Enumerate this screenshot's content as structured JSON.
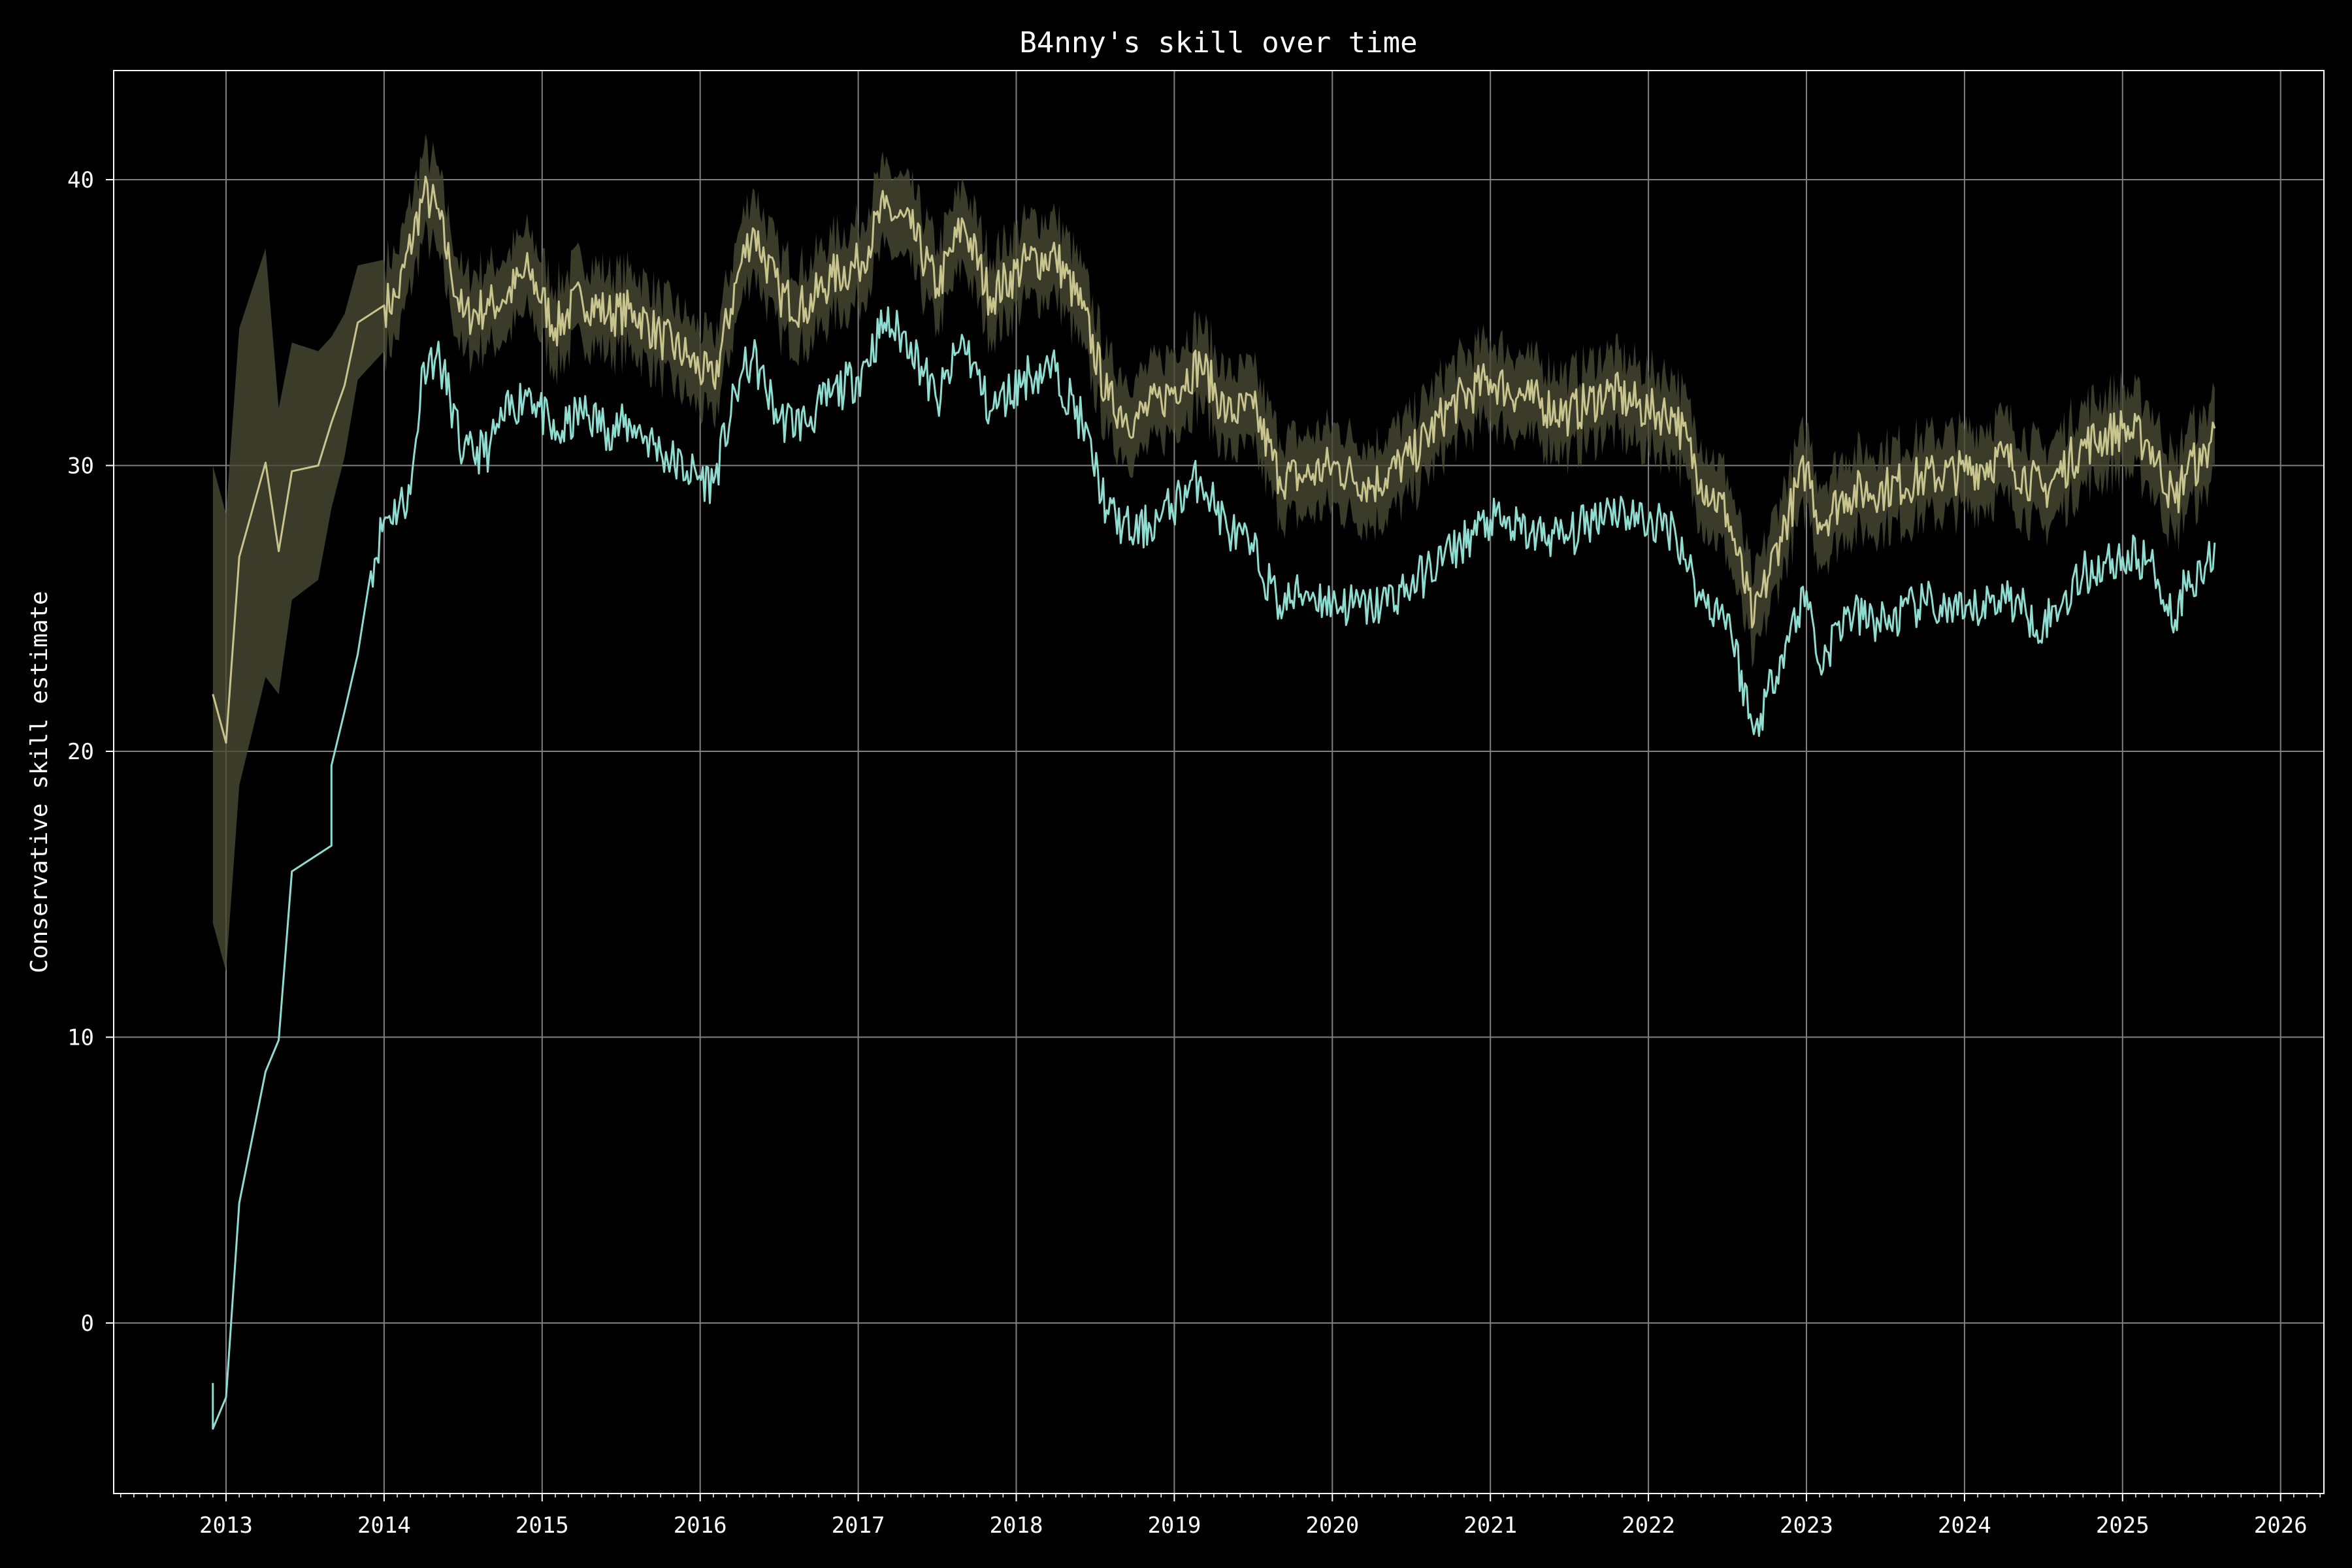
{
  "chart_data": {
    "type": "line",
    "title": "B4nny's skill over time",
    "xlabel": "",
    "ylabel": "Conservative skill estimate",
    "x_ticks": [
      "2013",
      "2014",
      "2015",
      "2016",
      "2017",
      "2018",
      "2019",
      "2020",
      "2021",
      "2022",
      "2023",
      "2024",
      "2025",
      "2026"
    ],
    "y_ticks": [
      "0",
      "10",
      "20",
      "30",
      "40"
    ],
    "xlim": [
      "2012-04",
      "2026-03"
    ],
    "ylim": [
      -6,
      44
    ],
    "grid": true,
    "colors": {
      "background": "#000000",
      "grid": "#808080",
      "axes": "#ffffff",
      "mean_line": "#c8c48e",
      "mean_band": "#4a4a35",
      "conservative_line": "#8fdcd0"
    },
    "series": [
      {
        "role": "mean_with_band",
        "points": [
          [
            "2012-12",
            22.0
          ],
          [
            "2013-01",
            20.3
          ],
          [
            "2013-02",
            26.8
          ],
          [
            "2013-04",
            30.1
          ],
          [
            "2013-05",
            27.0
          ],
          [
            "2013-06",
            29.8
          ],
          [
            "2013-08",
            30.0
          ],
          [
            "2013-09",
            31.5
          ],
          [
            "2013-10",
            32.8
          ],
          [
            "2013-11",
            35.0
          ],
          [
            "2014-01",
            35.6
          ],
          [
            "2014-02",
            35.9
          ],
          [
            "2014-04",
            39.5
          ],
          [
            "2014-05",
            39.0
          ],
          [
            "2014-06",
            37.0
          ],
          [
            "2014-07",
            35.2
          ],
          [
            "2014-09",
            35.6
          ],
          [
            "2014-10",
            35.8
          ],
          [
            "2014-12",
            36.8
          ],
          [
            "2015-02",
            34.8
          ],
          [
            "2015-04",
            35.9
          ],
          [
            "2015-06",
            35.3
          ],
          [
            "2015-08",
            35.4
          ],
          [
            "2015-10",
            34.5
          ],
          [
            "2015-12",
            33.8
          ],
          [
            "2016-02",
            32.9
          ],
          [
            "2016-04",
            36.9
          ],
          [
            "2016-05",
            38.3
          ],
          [
            "2016-07",
            36.0
          ],
          [
            "2016-09",
            35.5
          ],
          [
            "2016-11",
            36.6
          ],
          [
            "2017-01",
            37.0
          ],
          [
            "2017-03",
            39.0
          ],
          [
            "2017-05",
            38.3
          ],
          [
            "2017-07",
            36.2
          ],
          [
            "2017-09",
            38.5
          ],
          [
            "2017-11",
            35.9
          ],
          [
            "2018-02",
            37.2
          ],
          [
            "2018-04",
            37.3
          ],
          [
            "2018-06",
            35.5
          ],
          [
            "2018-08",
            32.3
          ],
          [
            "2018-10",
            31.6
          ],
          [
            "2018-12",
            32.3
          ],
          [
            "2019-03",
            33.6
          ],
          [
            "2019-05",
            31.8
          ],
          [
            "2019-07",
            32.0
          ],
          [
            "2019-09",
            29.6
          ],
          [
            "2019-11",
            29.6
          ],
          [
            "2020-01",
            30.0
          ],
          [
            "2020-04",
            29.3
          ],
          [
            "2020-07",
            30.3
          ],
          [
            "2020-10",
            32.1
          ],
          [
            "2021-01",
            33.0
          ],
          [
            "2021-04",
            32.3
          ],
          [
            "2021-07",
            31.8
          ],
          [
            "2021-10",
            32.6
          ],
          [
            "2022-01",
            31.9
          ],
          [
            "2022-03",
            31.8
          ],
          [
            "2022-05",
            29.5
          ],
          [
            "2022-07",
            28.3
          ],
          [
            "2022-09",
            24.5
          ],
          [
            "2022-11",
            27.5
          ],
          [
            "2023-01",
            30.0
          ],
          [
            "2023-02",
            28.0
          ],
          [
            "2023-04",
            29.0
          ],
          [
            "2023-07",
            29.2
          ],
          [
            "2023-10",
            29.6
          ],
          [
            "2024-01",
            29.8
          ],
          [
            "2024-04",
            30.3
          ],
          [
            "2024-07",
            29.1
          ],
          [
            "2024-10",
            30.7
          ],
          [
            "2025-01",
            31.3
          ],
          [
            "2025-03",
            30.8
          ],
          [
            "2025-05",
            28.7
          ],
          [
            "2025-06",
            30.1
          ],
          [
            "2025-07",
            30.0
          ],
          [
            "2025-08",
            31.3
          ]
        ],
        "band_halfwidth": [
          8.0,
          8.0,
          8.0,
          7.5,
          5.0,
          4.5,
          4.0,
          3.0,
          2.5,
          2.0,
          1.6,
          1.5,
          1.5,
          1.5,
          1.4,
          1.4,
          1.4,
          1.4,
          1.4,
          1.4,
          1.4,
          1.4,
          1.4,
          1.4,
          1.4,
          1.4,
          1.4,
          1.4,
          1.4,
          1.4,
          1.4,
          1.4,
          1.4,
          1.4,
          1.4,
          1.4,
          1.4,
          1.4,
          1.4,
          1.4,
          1.4,
          1.4,
          1.4,
          1.4,
          1.4,
          1.4,
          1.4,
          1.4,
          1.4,
          1.4,
          1.4,
          1.4,
          1.4,
          1.4,
          1.4,
          1.4,
          1.4,
          1.4,
          1.4,
          1.4,
          1.4,
          1.4,
          1.4,
          1.4,
          1.4,
          1.4,
          1.4,
          1.4,
          1.4,
          1.4,
          1.4,
          1.4,
          1.4,
          1.4,
          1.4,
          1.4,
          1.4
        ]
      },
      {
        "role": "conservative",
        "points": [
          [
            "2012-12",
            -2.1
          ],
          [
            "2012-12",
            -3.7
          ],
          [
            "2013-01",
            -2.6
          ],
          [
            "2013-02",
            4.2
          ],
          [
            "2013-04",
            8.8
          ],
          [
            "2013-05",
            9.9
          ],
          [
            "2013-06",
            15.8
          ],
          [
            "2013-09",
            16.7
          ],
          [
            "2013-09",
            19.5
          ],
          [
            "2013-10",
            21.4
          ],
          [
            "2013-11",
            23.4
          ],
          [
            "2013-12",
            26.3
          ],
          [
            "2014-01",
            28.1
          ],
          [
            "2014-03",
            29.0
          ],
          [
            "2014-04",
            33.6
          ],
          [
            "2014-05",
            33.9
          ],
          [
            "2014-06",
            32.4
          ],
          [
            "2014-07",
            30.3
          ],
          [
            "2014-09",
            30.6
          ],
          [
            "2014-10",
            31.6
          ],
          [
            "2014-12",
            32.7
          ],
          [
            "2015-02",
            30.9
          ],
          [
            "2015-04",
            31.9
          ],
          [
            "2015-06",
            31.3
          ],
          [
            "2015-08",
            31.4
          ],
          [
            "2015-10",
            30.5
          ],
          [
            "2015-12",
            29.8
          ],
          [
            "2016-02",
            29.4
          ],
          [
            "2016-04",
            33.0
          ],
          [
            "2016-05",
            33.8
          ],
          [
            "2016-07",
            31.6
          ],
          [
            "2016-09",
            31.5
          ],
          [
            "2016-11",
            32.5
          ],
          [
            "2017-01",
            33.1
          ],
          [
            "2017-03",
            35.0
          ],
          [
            "2017-05",
            34.3
          ],
          [
            "2017-07",
            32.2
          ],
          [
            "2017-09",
            34.4
          ],
          [
            "2017-11",
            31.9
          ],
          [
            "2018-02",
            33.2
          ],
          [
            "2018-04",
            33.3
          ],
          [
            "2018-06",
            31.5
          ],
          [
            "2018-08",
            28.3
          ],
          [
            "2018-10",
            27.6
          ],
          [
            "2018-12",
            28.2
          ],
          [
            "2019-03",
            29.6
          ],
          [
            "2019-05",
            27.8
          ],
          [
            "2019-07",
            27.0
          ],
          [
            "2019-09",
            25.1
          ],
          [
            "2019-11",
            25.6
          ],
          [
            "2020-01",
            25.2
          ],
          [
            "2020-04",
            25.0
          ],
          [
            "2020-07",
            25.8
          ],
          [
            "2020-10",
            27.0
          ],
          [
            "2021-01",
            28.1
          ],
          [
            "2021-04",
            27.6
          ],
          [
            "2021-07",
            27.5
          ],
          [
            "2021-10",
            28.6
          ],
          [
            "2022-01",
            28.0
          ],
          [
            "2022-03",
            27.8
          ],
          [
            "2022-05",
            25.3
          ],
          [
            "2022-07",
            24.8
          ],
          [
            "2022-09",
            20.6
          ],
          [
            "2022-11",
            23.3
          ],
          [
            "2023-01",
            25.6
          ],
          [
            "2023-02",
            23.0
          ],
          [
            "2023-04",
            24.8
          ],
          [
            "2023-07",
            24.5
          ],
          [
            "2023-10",
            25.2
          ],
          [
            "2024-01",
            24.7
          ],
          [
            "2024-04",
            25.5
          ],
          [
            "2024-07",
            24.4
          ],
          [
            "2024-10",
            26.2
          ],
          [
            "2025-01",
            26.8
          ],
          [
            "2025-03",
            26.7
          ],
          [
            "2025-05",
            24.6
          ],
          [
            "2025-06",
            26.3
          ],
          [
            "2025-07",
            26.0
          ],
          [
            "2025-08",
            27.3
          ]
        ]
      }
    ]
  }
}
